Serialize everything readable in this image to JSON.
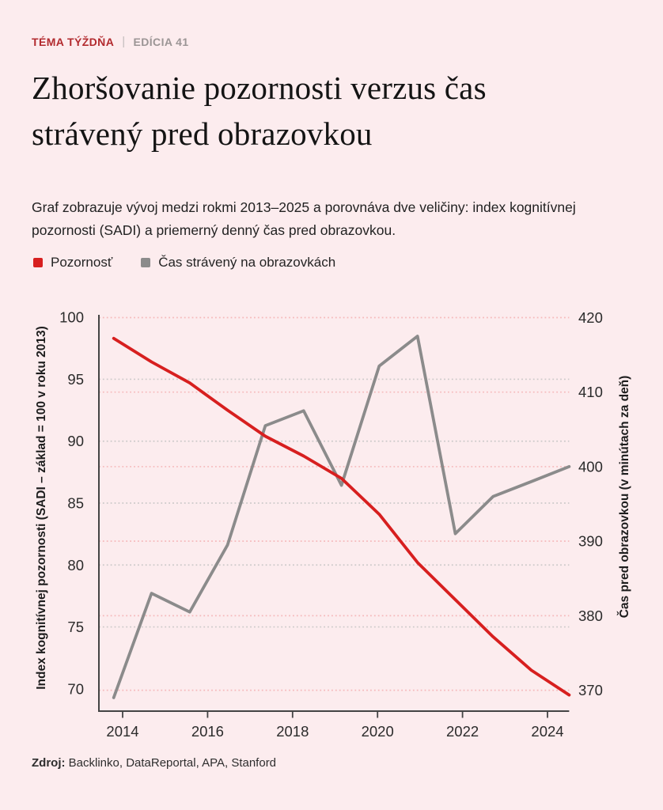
{
  "page": {
    "background": "#fcecee",
    "accent_red": "#b22a2e"
  },
  "header": {
    "eyebrow": {
      "category": "TÉMA TÝŽDŇA",
      "divider": "|",
      "edition": "EDÍCIA 41"
    },
    "title": "Zhoršovanie pozornosti verzus čas strávený pred obrazovkou",
    "subtitle": "Graf zobrazuje vývoj medzi rokmi 2013–2025 a porovnáva dve veličiny: index kognitívnej pozornosti (SADI) a priemerný denný čas pred obrazovkou."
  },
  "chart_data": {
    "type": "line",
    "x": [
      2013.79,
      2014.68,
      2015.58,
      2016.47,
      2017.36,
      2018.26,
      2019.15,
      2020.04,
      2020.94,
      2021.83,
      2022.72,
      2023.62,
      2024.51
    ],
    "x_range": [
      2013.45,
      2024.55
    ],
    "x_ticks": [
      2014,
      2016,
      2018,
      2020,
      2022,
      2024
    ],
    "series": [
      {
        "name": "Pozornosť",
        "axis": "left",
        "color": "#d71f1f",
        "values": [
          98.3,
          96.4,
          94.7,
          92.5,
          90.4,
          88.8,
          87.0,
          84.1,
          80.2,
          77.2,
          74.2,
          71.5,
          69.5
        ]
      },
      {
        "name": "Čas strávený na obrazovkách",
        "axis": "right",
        "color": "#8b8b8b",
        "values": [
          369,
          383,
          380.5,
          389.5,
          405.5,
          407.5,
          397.5,
          413.5,
          417.5,
          391,
          396,
          398,
          400
        ]
      }
    ],
    "left_axis": {
      "label": "Index kognitívnej pozornosti (SADI – základ = 100 v roku 2013)",
      "ticks": [
        100,
        95,
        90,
        85,
        80,
        75,
        70
      ],
      "range": [
        68.2,
        100
      ],
      "gridline_values": [
        95,
        90,
        85,
        80,
        75
      ],
      "gridline_color": "#cbc9c9"
    },
    "right_axis": {
      "label": "Čas pred obrazovkou (v minútach za deň)",
      "ticks": [
        420,
        410,
        400,
        390,
        380,
        370
      ],
      "range": [
        367.2,
        420
      ],
      "gridline_values": [
        420,
        410,
        400,
        390,
        380,
        370
      ],
      "gridline_color": "#f5b9bb"
    },
    "grid_style": "dotted",
    "legend_position": "top-left"
  },
  "source": {
    "prefix": "Zdroj:",
    "text": " Backlinko, DataReportal, APA, Stanford"
  }
}
